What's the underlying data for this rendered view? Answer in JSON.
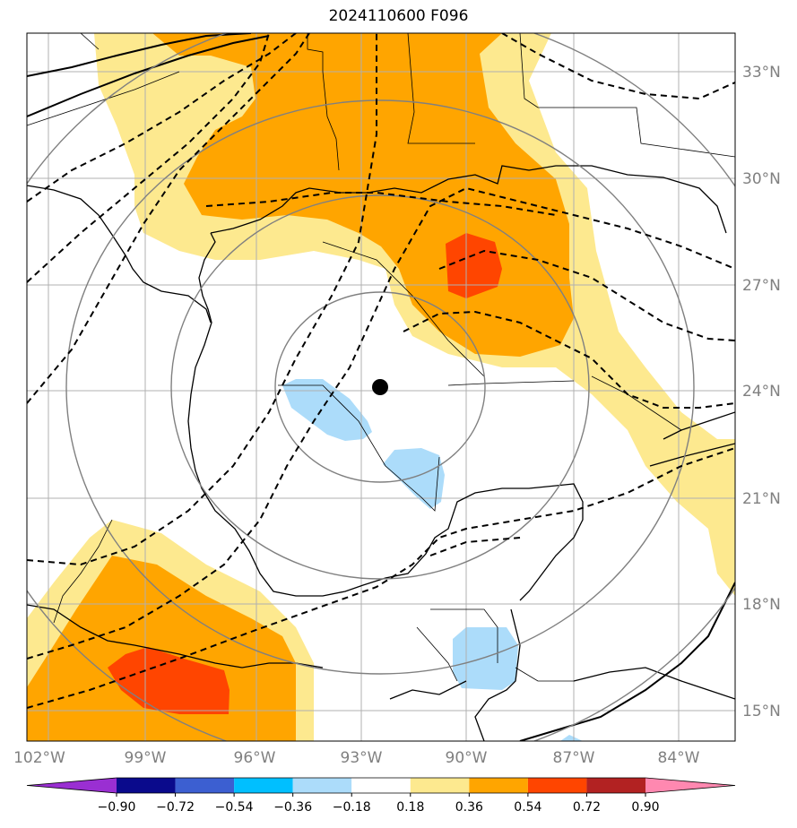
{
  "title": "2024110600 F096",
  "colors": {
    "ocean": "#ffffff",
    "light_yellow": "#fde98f",
    "orange": "#ffa500",
    "red_orange": "#ff4500",
    "light_blue": "#acdcfa",
    "grid": "#b0b0b0",
    "range_rings": "#808080"
  },
  "map": {
    "lon_labels": [
      "102°W",
      "99°W",
      "96°W",
      "93°W",
      "90°W",
      "87°W",
      "84°W"
    ],
    "lat_labels": [
      "33°N",
      "30°N",
      "27°N",
      "24°N",
      "21°N",
      "18°N",
      "15°N"
    ],
    "center_marker": "storm-center"
  },
  "colorbar": {
    "colors": [
      "#9a2fd2",
      "#0a0a8c",
      "#3c5fd1",
      "#00bfff",
      "#acdcfa",
      "#ffffff",
      "#fde98f",
      "#ffa500",
      "#ff4500",
      "#b22222",
      "#ff88b0"
    ],
    "labels": [
      "−0.90",
      "−0.72",
      "−0.54",
      "−0.36",
      "−0.18",
      "0.18",
      "0.36",
      "0.54",
      "0.72",
      "0.90"
    ]
  }
}
